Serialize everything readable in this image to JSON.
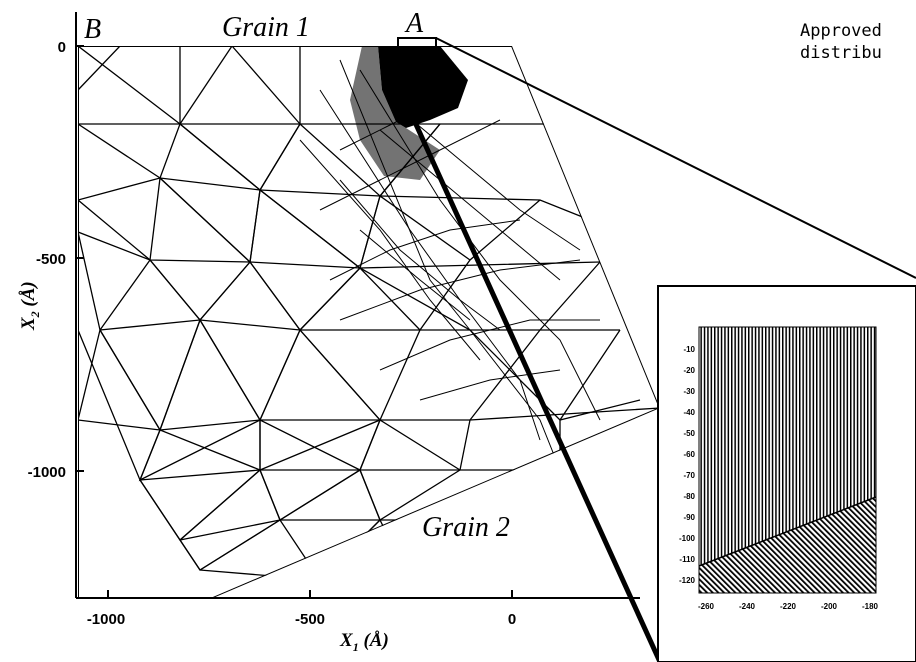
{
  "figure": {
    "labels": {
      "B": "B",
      "A": "A",
      "grain1": "Grain 1",
      "grain2": "Grain 2"
    },
    "x_axis": {
      "label": "X",
      "label_sub": "1",
      "label_unit": " (Å)",
      "ticks": [
        "-1000",
        "-500",
        "0"
      ]
    },
    "y_axis": {
      "label": "X",
      "label_sub": "2",
      "label_unit": " (Å)",
      "ticks": [
        "0",
        "-500",
        "-1000"
      ]
    },
    "stamp": [
      "Approved",
      "distribu"
    ],
    "inset": {
      "y_ticks": [
        "-10",
        "-20",
        "-30",
        "-40",
        "-50",
        "-60",
        "-70",
        "-80",
        "-90",
        "-100",
        "-110",
        "-120"
      ],
      "x_ticks": [
        "-260",
        "-240",
        "-220",
        "-200",
        "-180"
      ]
    }
  }
}
